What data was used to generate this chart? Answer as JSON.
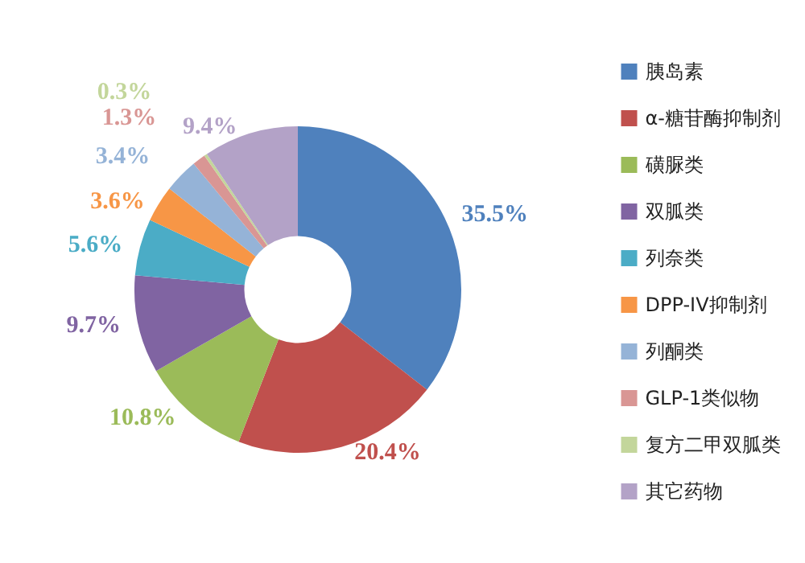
{
  "chart_data": {
    "type": "donut",
    "categories": [
      "胰岛素",
      "α-糖苷酶抑制剂",
      "磺脲类",
      "双胍类",
      "列奈类",
      "DPP-IV抑制剂",
      "列酮类",
      "GLP-1类似物",
      "复方二甲双胍类",
      "其它药物"
    ],
    "values": [
      35.5,
      20.4,
      10.8,
      9.7,
      5.6,
      3.6,
      3.4,
      1.3,
      0.3,
      9.4
    ],
    "value_labels": [
      "35.5%",
      "20.4%",
      "10.8%",
      "9.7%",
      "5.6%",
      "3.6%",
      "3.4%",
      "1.3%",
      "0.3%",
      "9.4%"
    ],
    "colors": [
      "#4f81bd",
      "#c0504d",
      "#9bbb59",
      "#8064a2",
      "#4bacc6",
      "#f79646",
      "#95b3d7",
      "#d99694",
      "#c3d69b",
      "#b3a2c7"
    ],
    "legend": "right"
  }
}
